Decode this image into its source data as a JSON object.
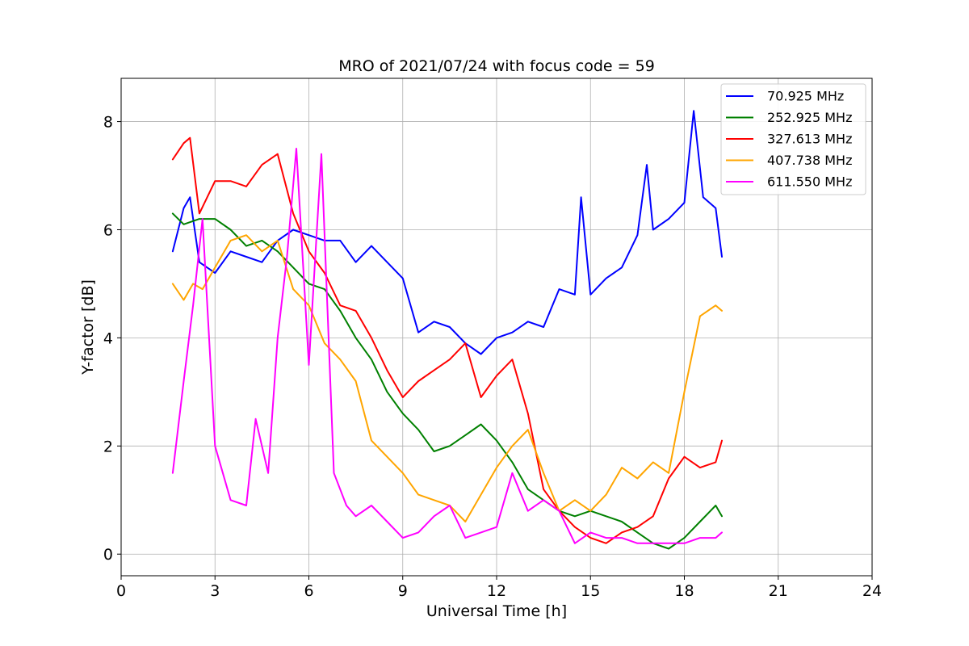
{
  "chart_data": {
    "type": "line",
    "title": "MRO of 2021/07/24 with focus code = 59",
    "xlabel": "Universal Time [h]",
    "ylabel": "Y-factor [dB]",
    "xlim": [
      0,
      24
    ],
    "ylim": [
      -0.4,
      8.8
    ],
    "xticks": [
      0,
      3,
      6,
      9,
      12,
      15,
      18,
      21,
      24
    ],
    "yticks": [
      0,
      2,
      4,
      6,
      8
    ],
    "grid": true,
    "legend_position": "top-right",
    "series": [
      {
        "name": " 70.925 MHz",
        "color": "#0000ff",
        "x": [
          1.65,
          2.0,
          2.2,
          2.5,
          3.0,
          3.5,
          4.0,
          4.5,
          5.0,
          5.5,
          6.0,
          6.5,
          7.0,
          7.5,
          8.0,
          8.5,
          9.0,
          9.5,
          10.0,
          10.5,
          11.0,
          11.5,
          12.0,
          12.5,
          13.0,
          13.5,
          14.0,
          14.5,
          14.7,
          15.0,
          15.5,
          16.0,
          16.5,
          16.8,
          17.0,
          17.5,
          18.0,
          18.3,
          18.6,
          19.0,
          19.2
        ],
        "y": [
          5.6,
          6.4,
          6.6,
          5.4,
          5.2,
          5.6,
          5.5,
          5.4,
          5.8,
          6.0,
          5.9,
          5.8,
          5.8,
          5.4,
          5.7,
          5.4,
          5.1,
          4.1,
          4.3,
          4.2,
          3.9,
          3.7,
          4.0,
          4.1,
          4.3,
          4.2,
          4.9,
          4.8,
          6.6,
          4.8,
          5.1,
          5.3,
          5.9,
          7.2,
          6.0,
          6.2,
          6.5,
          8.2,
          6.6,
          6.4,
          5.5
        ]
      },
      {
        "name": "252.925 MHz",
        "color": "#008000",
        "x": [
          1.65,
          2.0,
          2.5,
          3.0,
          3.5,
          4.0,
          4.5,
          5.0,
          5.5,
          6.0,
          6.5,
          7.0,
          7.5,
          8.0,
          8.5,
          9.0,
          9.5,
          10.0,
          10.5,
          11.0,
          11.5,
          12.0,
          12.5,
          13.0,
          13.5,
          14.0,
          14.5,
          15.0,
          15.5,
          16.0,
          16.5,
          17.0,
          17.5,
          18.0,
          18.5,
          19.0,
          19.2
        ],
        "y": [
          6.3,
          6.1,
          6.2,
          6.2,
          6.0,
          5.7,
          5.8,
          5.6,
          5.3,
          5.0,
          4.9,
          4.5,
          4.0,
          3.6,
          3.0,
          2.6,
          2.3,
          1.9,
          2.0,
          2.2,
          2.4,
          2.1,
          1.7,
          1.2,
          1.0,
          0.8,
          0.7,
          0.8,
          0.7,
          0.6,
          0.4,
          0.2,
          0.1,
          0.3,
          0.6,
          0.9,
          0.7
        ]
      },
      {
        "name": "327.613 MHz",
        "color": "#ff0000",
        "x": [
          1.65,
          2.0,
          2.2,
          2.5,
          3.0,
          3.5,
          4.0,
          4.5,
          5.0,
          5.5,
          6.0,
          6.5,
          7.0,
          7.5,
          8.0,
          8.5,
          9.0,
          9.5,
          10.0,
          10.5,
          11.0,
          11.5,
          12.0,
          12.5,
          13.0,
          13.5,
          14.0,
          14.5,
          15.0,
          15.5,
          16.0,
          16.5,
          17.0,
          17.5,
          18.0,
          18.5,
          19.0,
          19.2
        ],
        "y": [
          7.3,
          7.6,
          7.7,
          6.3,
          6.9,
          6.9,
          6.8,
          7.2,
          7.4,
          6.3,
          5.6,
          5.2,
          4.6,
          4.5,
          4.0,
          3.4,
          2.9,
          3.2,
          3.4,
          3.6,
          3.9,
          2.9,
          3.3,
          3.6,
          2.6,
          1.2,
          0.8,
          0.5,
          0.3,
          0.2,
          0.4,
          0.5,
          0.7,
          1.4,
          1.8,
          1.6,
          1.7,
          2.1
        ]
      },
      {
        "name": "407.738 MHz",
        "color": "#ffa500",
        "x": [
          1.65,
          2.0,
          2.3,
          2.6,
          3.0,
          3.5,
          4.0,
          4.5,
          5.0,
          5.5,
          6.0,
          6.5,
          7.0,
          7.5,
          8.0,
          8.5,
          9.0,
          9.5,
          10.0,
          10.5,
          11.0,
          11.5,
          12.0,
          12.5,
          13.0,
          13.5,
          14.0,
          14.5,
          15.0,
          15.5,
          16.0,
          16.5,
          17.0,
          17.5,
          18.0,
          18.5,
          19.0,
          19.2
        ],
        "y": [
          5.0,
          4.7,
          5.0,
          4.9,
          5.3,
          5.8,
          5.9,
          5.6,
          5.8,
          4.9,
          4.6,
          3.9,
          3.6,
          3.2,
          2.1,
          1.8,
          1.5,
          1.1,
          1.0,
          0.9,
          0.6,
          1.1,
          1.6,
          2.0,
          2.3,
          1.5,
          0.8,
          1.0,
          0.8,
          1.1,
          1.6,
          1.4,
          1.7,
          1.5,
          3.0,
          4.4,
          4.6,
          4.5
        ]
      },
      {
        "name": "611.550 MHz",
        "color": "#ff00ff",
        "x": [
          1.65,
          2.0,
          2.3,
          2.6,
          3.0,
          3.5,
          4.0,
          4.3,
          4.7,
          5.0,
          5.3,
          5.6,
          6.0,
          6.4,
          6.8,
          7.2,
          7.5,
          8.0,
          8.5,
          9.0,
          9.5,
          10.0,
          10.5,
          11.0,
          11.5,
          12.0,
          12.5,
          13.0,
          13.5,
          14.0,
          14.5,
          15.0,
          15.5,
          16.0,
          16.5,
          17.0,
          17.5,
          18.0,
          18.5,
          19.0,
          19.2
        ],
        "y": [
          1.5,
          3.2,
          4.6,
          6.2,
          2.0,
          1.0,
          0.9,
          2.5,
          1.5,
          4.0,
          5.5,
          7.5,
          3.5,
          7.4,
          1.5,
          0.9,
          0.7,
          0.9,
          0.6,
          0.3,
          0.4,
          0.7,
          0.9,
          0.3,
          0.4,
          0.5,
          1.5,
          0.8,
          1.0,
          0.8,
          0.2,
          0.4,
          0.3,
          0.3,
          0.2,
          0.2,
          0.2,
          0.2,
          0.3,
          0.3,
          0.4
        ]
      }
    ]
  }
}
